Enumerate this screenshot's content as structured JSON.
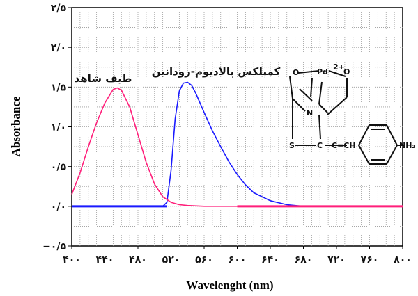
{
  "chart_data": {
    "type": "line",
    "title": "",
    "xlabel": "Wavelenght (nm)",
    "ylabel": "Absorbance",
    "xlim": [
      400,
      800
    ],
    "ylim": [
      -0.5,
      2.5
    ],
    "x_ticks": [
      400,
      440,
      480,
      520,
      560,
      600,
      640,
      680,
      720,
      760,
      800
    ],
    "x_tick_labels": [
      "۴۰۰",
      "۴۴۰",
      "۴۸۰",
      "۵۲۰",
      "۵۶۰",
      "۶۰۰",
      "۶۴۰",
      "۶۸۰",
      "۷۲۰",
      "۷۶۰",
      "۸۰۰"
    ],
    "y_ticks": [
      -0.5,
      0,
      0.5,
      1.0,
      1.5,
      2.0,
      2.5
    ],
    "y_tick_labels": [
      "−۰/۵",
      "۰/۰",
      "۰/۵",
      "۱/۰",
      "۱/۵",
      "۲/۰",
      "۲/۵"
    ],
    "grid": true,
    "series": [
      {
        "name": "طیف شاهد",
        "color": "#ff1f7a",
        "x": [
          400,
          410,
          420,
          430,
          440,
          450,
          455,
          460,
          470,
          480,
          490,
          500,
          510,
          520,
          530,
          540,
          560,
          600,
          700,
          800
        ],
        "y": [
          0.15,
          0.42,
          0.75,
          1.05,
          1.3,
          1.47,
          1.49,
          1.46,
          1.25,
          0.9,
          0.55,
          0.28,
          0.12,
          0.05,
          0.02,
          0.01,
          0.0,
          0.0,
          0.0,
          0.0
        ]
      },
      {
        "name": "کمپلکس پالادیوم-رودانین",
        "color": "#1a1aff",
        "x": [
          400,
          450,
          500,
          510,
          515,
          520,
          525,
          530,
          535,
          540,
          545,
          550,
          555,
          560,
          570,
          580,
          590,
          600,
          610,
          620,
          640,
          660,
          680,
          700,
          800
        ],
        "y": [
          0.0,
          0.0,
          0.0,
          0.0,
          0.05,
          0.45,
          1.1,
          1.45,
          1.55,
          1.56,
          1.52,
          1.42,
          1.3,
          1.18,
          0.95,
          0.75,
          0.56,
          0.4,
          0.27,
          0.17,
          0.07,
          0.02,
          0.0,
          0.0,
          0.0
        ]
      }
    ],
    "annotations": [
      {
        "text": "طیف شاهد",
        "x": 437,
        "y": 1.75
      },
      {
        "text": "کمپلکس پالادیوم-رودانین",
        "x": 560,
        "y": 1.98
      }
    ]
  },
  "structure": {
    "atoms": {
      "pd": "Pd",
      "charge": "2+",
      "o": "O",
      "n": "N",
      "s_lower": "S",
      "c_ring": "C",
      "ch": "C=CH",
      "nh2": "NH₂"
    }
  }
}
